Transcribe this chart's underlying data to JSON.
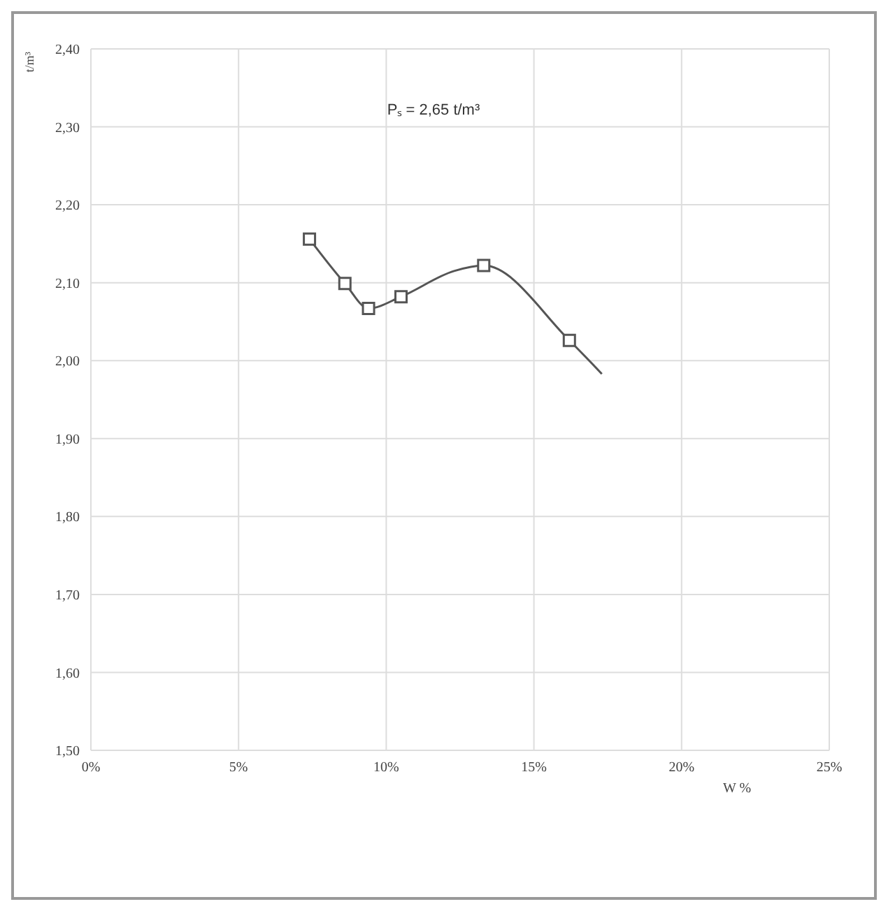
{
  "chart_data": {
    "type": "line",
    "xlabel": "W %",
    "ylabel": "t/m³",
    "annotations": [
      "Pₛ = 2,65 t/m³"
    ],
    "xlim": [
      0,
      25
    ],
    "xticks": [
      {
        "value": 0,
        "label": "0%"
      },
      {
        "value": 5,
        "label": "5%"
      },
      {
        "value": 10,
        "label": "10%"
      },
      {
        "value": 15,
        "label": "15%"
      },
      {
        "value": 20,
        "label": "20%"
      },
      {
        "value": 25,
        "label": "25%"
      }
    ],
    "ylim": [
      1.5,
      2.4
    ],
    "yticks": [
      {
        "value": 1.5,
        "label": "1,50"
      },
      {
        "value": 1.6,
        "label": "1,60"
      },
      {
        "value": 1.7,
        "label": "1,70"
      },
      {
        "value": 1.8,
        "label": "1,80"
      },
      {
        "value": 1.9,
        "label": "1,90"
      },
      {
        "value": 2.0,
        "label": "2,00"
      },
      {
        "value": 2.1,
        "label": "2,10"
      },
      {
        "value": 2.2,
        "label": "2,20"
      },
      {
        "value": 2.3,
        "label": "2,30"
      },
      {
        "value": 2.4,
        "label": "2,40"
      }
    ],
    "grid": true,
    "line_style": "solid",
    "series": [
      {
        "marker": "none",
        "color": "#555555",
        "x": [
          7.4,
          8.6,
          9.4,
          10.5,
          12.3,
          13.3,
          16.2,
          17.3
        ],
        "values": [
          2.156,
          2.099,
          2.067,
          2.082,
          2.115,
          2.122,
          2.026,
          1.983
        ]
      },
      {
        "type": "scatter",
        "marker": "square",
        "color": "#555555",
        "x": [
          7.4,
          8.6,
          9.4,
          10.5,
          13.3,
          16.2
        ],
        "values": [
          2.156,
          2.099,
          2.067,
          2.082,
          2.122,
          2.026
        ]
      }
    ]
  }
}
